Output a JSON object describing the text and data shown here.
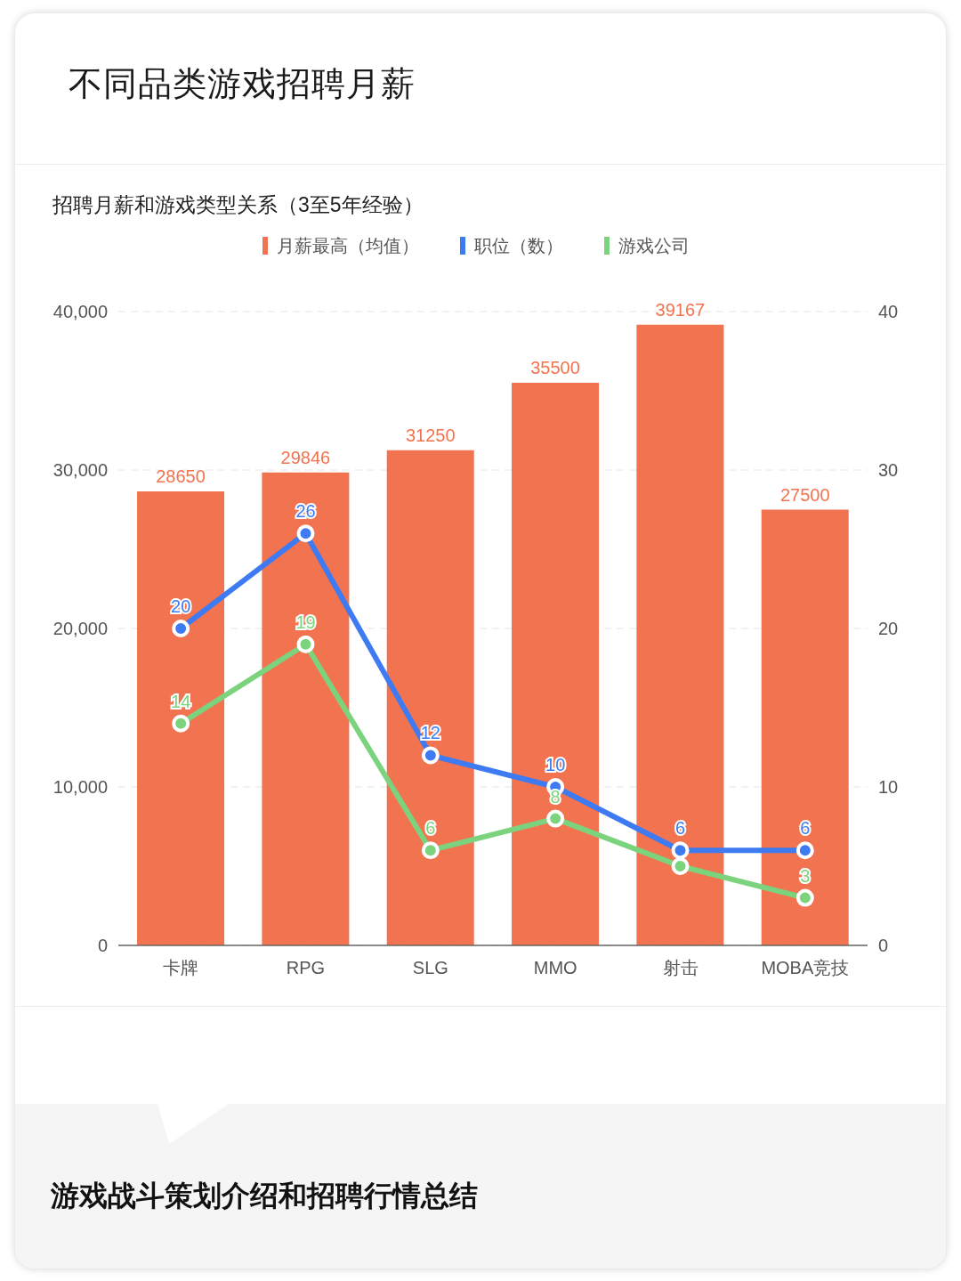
{
  "chart_data": {
    "type": "bar",
    "title": "不同品类游戏招聘月薪",
    "subtitle": "招聘月薪和游戏类型关系（3至5年经验）",
    "annotations": [
      "游戏战斗策划介绍和招聘行情总结"
    ],
    "categories": [
      "卡牌",
      "RPG",
      "SLG",
      "MMO",
      "射击",
      "MOBA竞技"
    ],
    "series": [
      {
        "name": "月薪最高（均值）",
        "color": "#f2734f",
        "values": [
          28650,
          29846,
          31250,
          35500,
          39167,
          27500
        ],
        "value_labels": [
          "28650",
          "29846",
          "31250",
          "35500",
          "39167",
          "27500"
        ]
      },
      {
        "name": "职位（数）",
        "type": "line",
        "axis": "y2",
        "color": "#3e7bf2",
        "values": [
          20,
          26,
          12,
          10,
          6,
          6
        ],
        "value_labels": [
          "20",
          "26",
          "12",
          "10",
          "6",
          "6"
        ]
      },
      {
        "name": "游戏公司",
        "type": "line",
        "axis": "y2",
        "color": "#7cd37e",
        "values": [
          14,
          19,
          6,
          8,
          5,
          3
        ],
        "value_labels": [
          "14",
          "19",
          "6",
          "8",
          null,
          "3"
        ]
      }
    ],
    "ylim": [
      0,
      40000
    ],
    "yticks": [
      0,
      {
        "value": 10000,
        "label": "10,000"
      },
      {
        "value": 20000,
        "label": "20,000"
      },
      {
        "value": 30000,
        "label": "30,000"
      },
      {
        "value": 40000,
        "label": "40,000"
      }
    ],
    "y2lim": [
      0,
      40
    ],
    "y2ticks": [
      0,
      10,
      20,
      30,
      40
    ],
    "grid": "y",
    "legend": "top",
    "marker": "circle"
  }
}
